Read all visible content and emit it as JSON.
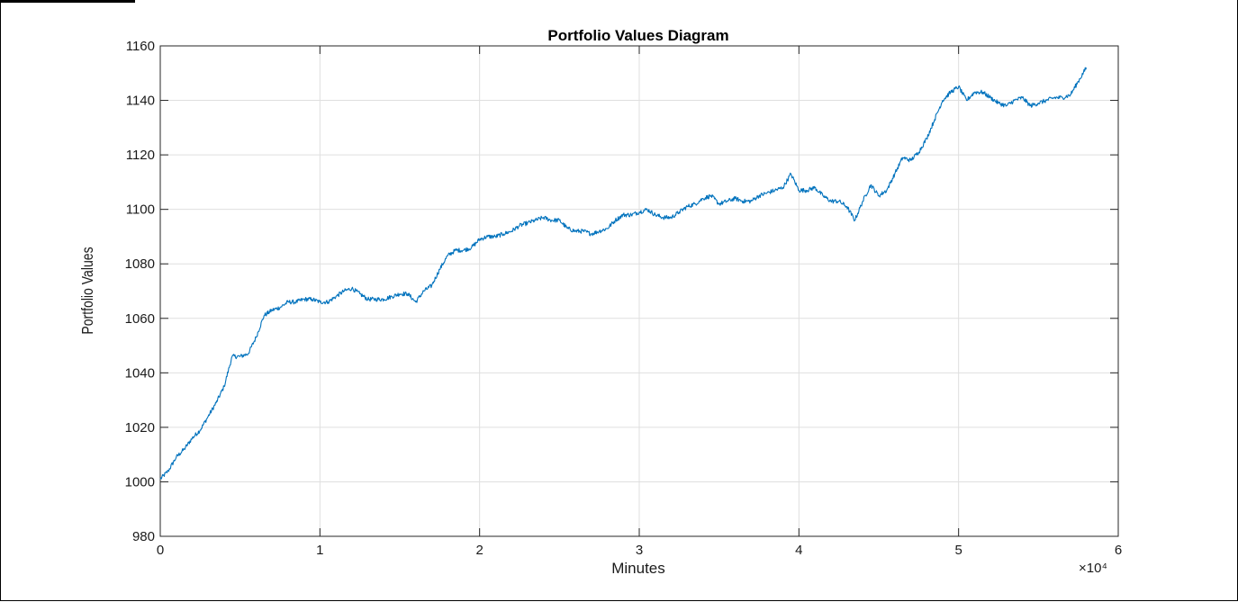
{
  "chart_data": {
    "type": "line",
    "title": "Portfolio Values Diagram",
    "xlabel": "Minutes",
    "ylabel": "Portfolio Values",
    "x_exponent_label": "×10⁴",
    "xlim": [
      0,
      6
    ],
    "ylim": [
      980,
      1160
    ],
    "x_ticks": [
      0,
      1,
      2,
      3,
      4,
      5,
      6
    ],
    "y_ticks": [
      980,
      1000,
      1020,
      1040,
      1060,
      1080,
      1100,
      1120,
      1140,
      1160
    ],
    "grid": true,
    "line_color": "#0072BD",
    "series": [
      {
        "name": "Portfolio Values",
        "x": [
          0,
          0.05,
          0.1,
          0.15,
          0.2,
          0.25,
          0.3,
          0.35,
          0.4,
          0.45,
          0.5,
          0.55,
          0.6,
          0.65,
          0.7,
          0.75,
          0.8,
          0.85,
          0.9,
          0.95,
          1.0,
          1.05,
          1.1,
          1.15,
          1.2,
          1.25,
          1.3,
          1.35,
          1.4,
          1.45,
          1.5,
          1.55,
          1.6,
          1.65,
          1.7,
          1.75,
          1.8,
          1.85,
          1.9,
          1.95,
          2.0,
          2.05,
          2.1,
          2.15,
          2.2,
          2.25,
          2.3,
          2.35,
          2.4,
          2.45,
          2.5,
          2.55,
          2.6,
          2.65,
          2.7,
          2.75,
          2.8,
          2.85,
          2.9,
          2.95,
          3.0,
          3.05,
          3.1,
          3.15,
          3.2,
          3.25,
          3.3,
          3.35,
          3.4,
          3.45,
          3.5,
          3.55,
          3.6,
          3.65,
          3.7,
          3.75,
          3.8,
          3.85,
          3.9,
          3.95,
          4.0,
          4.05,
          4.1,
          4.15,
          4.2,
          4.25,
          4.3,
          4.35,
          4.4,
          4.45,
          4.5,
          4.55,
          4.6,
          4.65,
          4.7,
          4.75,
          4.8,
          4.85,
          4.9,
          4.95,
          5.0,
          5.05,
          5.1,
          5.15,
          5.2,
          5.25,
          5.3,
          5.35,
          5.4,
          5.45,
          5.5,
          5.55,
          5.6,
          5.65,
          5.7,
          5.75,
          5.8
        ],
        "values": [
          1001,
          1004,
          1009,
          1012,
          1016,
          1019,
          1024,
          1029,
          1035,
          1046,
          1046,
          1047,
          1053,
          1061,
          1063,
          1064,
          1066,
          1066,
          1067,
          1067,
          1066,
          1066,
          1068,
          1070,
          1071,
          1069,
          1067,
          1067,
          1067,
          1068,
          1069,
          1069,
          1066,
          1070,
          1072,
          1078,
          1083,
          1085,
          1085,
          1086,
          1089,
          1090,
          1090,
          1091,
          1092,
          1094,
          1095,
          1096,
          1097,
          1096,
          1096,
          1093,
          1092,
          1092,
          1091,
          1092,
          1093,
          1096,
          1098,
          1098,
          1099,
          1100,
          1098,
          1097,
          1097,
          1099,
          1101,
          1102,
          1104,
          1105,
          1102,
          1103,
          1104,
          1103,
          1103,
          1105,
          1106,
          1107,
          1108,
          1113,
          1107,
          1107,
          1108,
          1105,
          1103,
          1103,
          1101,
          1096,
          1103,
          1109,
          1105,
          1107,
          1113,
          1119,
          1118,
          1121,
          1126,
          1133,
          1140,
          1143,
          1145,
          1140,
          1143,
          1143,
          1141,
          1139,
          1138,
          1140,
          1141,
          1138,
          1139,
          1140,
          1141,
          1141,
          1142,
          1147,
          1152
        ]
      }
    ]
  }
}
